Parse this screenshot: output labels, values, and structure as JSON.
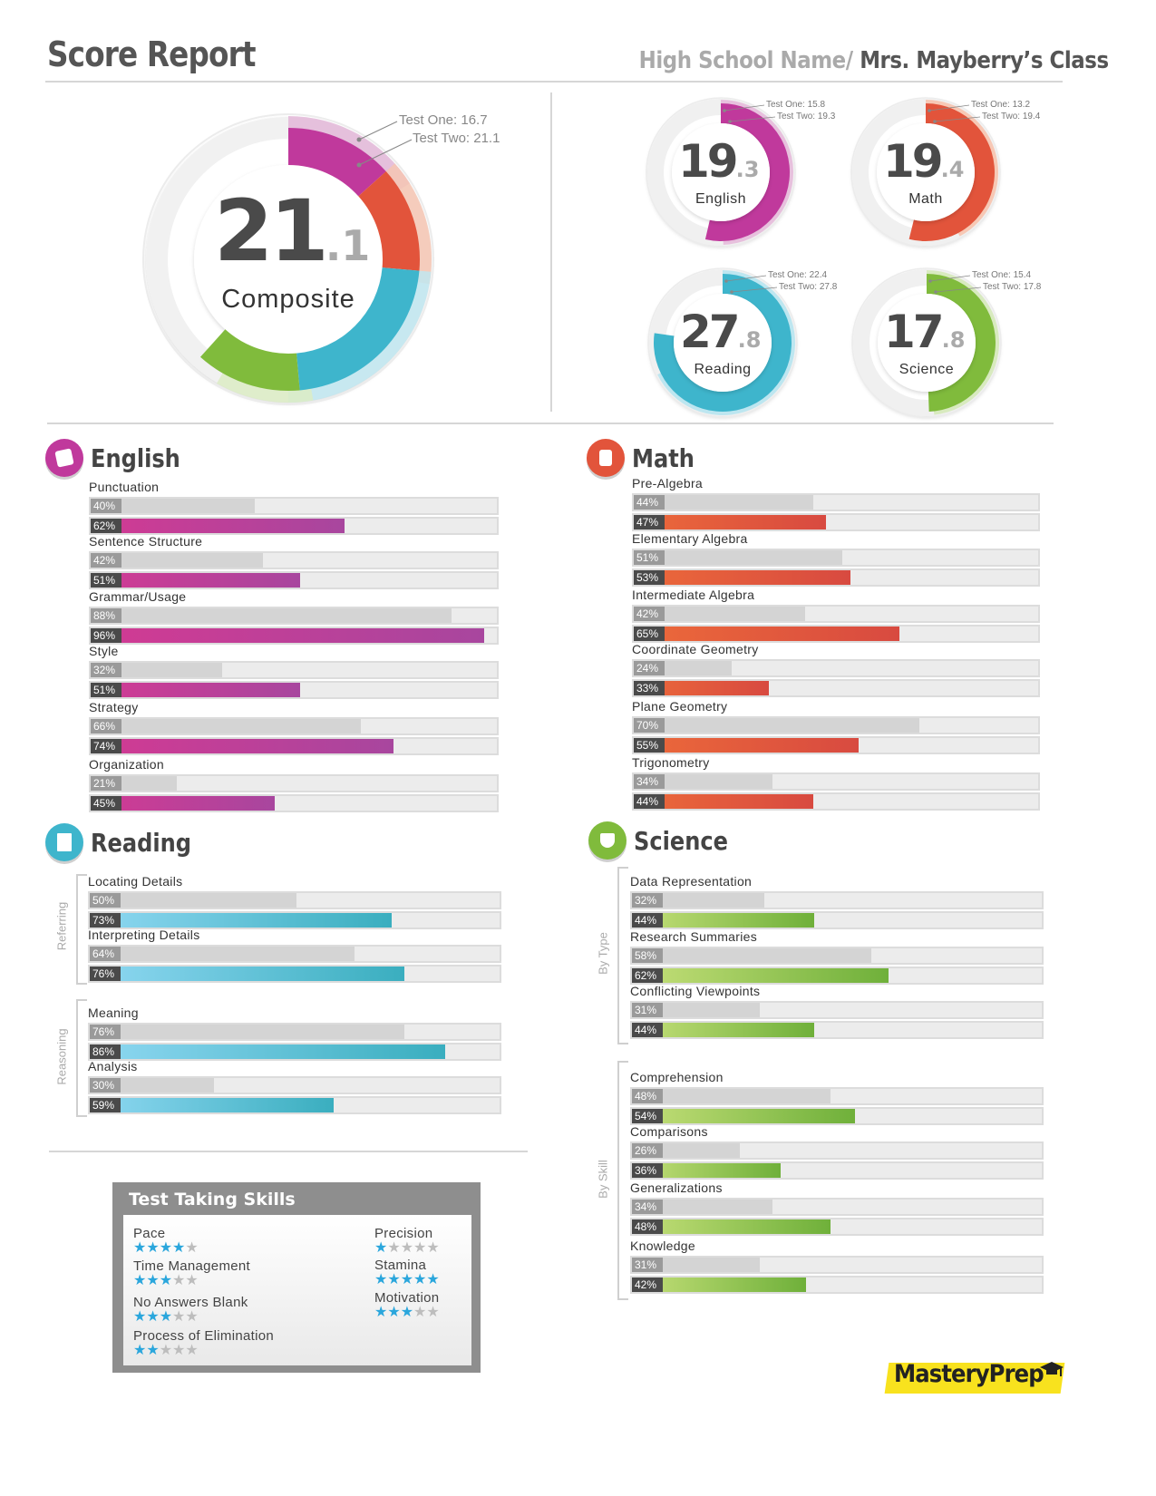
{
  "header": {
    "title": "Score Report",
    "school": "High School  Name/",
    "class_name": " Mrs. Mayberry’s Class"
  },
  "colors": {
    "english": "#c0399c",
    "math": "#e2543b",
    "reading": "#3eb5cc",
    "science": "#80bb3c"
  },
  "composite": {
    "whole": "21",
    "decimal": ".1",
    "label": "Composite",
    "test_one": "Test One: 16.7",
    "test_two": "Test Two: 21.1"
  },
  "subjects": [
    {
      "key": "english",
      "whole": "19",
      "decimal": ".3",
      "label": "English",
      "test_one": "Test One: 15.8",
      "test_two": "Test Two: 19.3",
      "test_one_score": 15.8,
      "test_two_score": 19.3
    },
    {
      "key": "math",
      "whole": "19",
      "decimal": ".4",
      "label": "Math",
      "test_one": "Test One: 13.2",
      "test_two": "Test Two: 19.4",
      "test_one_score": 13.2,
      "test_two_score": 19.4
    },
    {
      "key": "reading",
      "whole": "27",
      "decimal": ".8",
      "label": "Reading",
      "test_one": "Test One: 22.4",
      "test_two": "Test Two: 27.8",
      "test_one_score": 22.4,
      "test_two_score": 27.8
    },
    {
      "key": "science",
      "whole": "17",
      "decimal": ".8",
      "label": "Science",
      "test_one": "Test One: 15.4",
      "test_two": "Test Two: 17.8",
      "test_one_score": 15.4,
      "test_two_score": 17.8
    }
  ],
  "english": {
    "title": "English",
    "skills": [
      {
        "name": "Punctuation",
        "t1": "40%",
        "t2": "62%",
        "t1_value": 40,
        "t2_value": 62
      },
      {
        "name": "Sentence Structure",
        "t1": "42%",
        "t2": "51%",
        "t1_value": 42,
        "t2_value": 51
      },
      {
        "name": "Grammar/Usage",
        "t1": "88%",
        "t2": "96%",
        "t1_value": 88,
        "t2_value": 96
      },
      {
        "name": "Style",
        "t1": "32%",
        "t2": "51%",
        "t1_value": 32,
        "t2_value": 51
      },
      {
        "name": "Strategy",
        "t1": "66%",
        "t2": "74%",
        "t1_value": 66,
        "t2_value": 74
      },
      {
        "name": "Organization",
        "t1": "21%",
        "t2": "45%",
        "t1_value": 21,
        "t2_value": 45
      }
    ]
  },
  "math": {
    "title": "Math",
    "skills": [
      {
        "name": "Pre-Algebra",
        "t1": "44%",
        "t2": "47%",
        "t1_value": 44,
        "t2_value": 47
      },
      {
        "name": "Elementary Algebra",
        "t1": "51%",
        "t2": "53%",
        "t1_value": 51,
        "t2_value": 53
      },
      {
        "name": "Intermediate Algebra",
        "t1": "42%",
        "t2": "65%",
        "t1_value": 42,
        "t2_value": 65
      },
      {
        "name": "Coordinate Geometry",
        "t1": "24%",
        "t2": "33%",
        "t1_value": 24,
        "t2_value": 33
      },
      {
        "name": "Plane Geometry",
        "t1": "70%",
        "t2": "55%",
        "t1_value": 70,
        "t2_value": 55
      },
      {
        "name": "Trigonometry",
        "t1": "34%",
        "t2": "44%",
        "t1_value": 34,
        "t2_value": 44
      }
    ]
  },
  "reading": {
    "title": "Reading",
    "groups": [
      {
        "label": "Referring",
        "skills": [
          {
            "name": "Locating Details",
            "t1": "50%",
            "t2": "73%",
            "t1_value": 50,
            "t2_value": 73
          },
          {
            "name": "Interpreting Details",
            "t1": "64%",
            "t2": "76%",
            "t1_value": 64,
            "t2_value": 76
          }
        ]
      },
      {
        "label": "Reasoning",
        "skills": [
          {
            "name": "Meaning",
            "t1": "76%",
            "t2": "86%",
            "t1_value": 76,
            "t2_value": 86
          },
          {
            "name": "Analysis",
            "t1": "30%",
            "t2": "59%",
            "t1_value": 30,
            "t2_value": 59
          }
        ]
      }
    ]
  },
  "science": {
    "title": "Science",
    "groups": [
      {
        "label": "By Type",
        "skills": [
          {
            "name": "Data Representation",
            "t1": "32%",
            "t2": "44%",
            "t1_value": 32,
            "t2_value": 44
          },
          {
            "name": "Research Summaries",
            "t1": "58%",
            "t2": "62%",
            "t1_value": 58,
            "t2_value": 62
          },
          {
            "name": "Conflicting Viewpoints",
            "t1": "31%",
            "t2": "44%",
            "t1_value": 31,
            "t2_value": 44
          }
        ]
      },
      {
        "label": "By Skill",
        "skills": [
          {
            "name": "Comprehension",
            "t1": "48%",
            "t2": "54%",
            "t1_value": 48,
            "t2_value": 54
          },
          {
            "name": "Comparisons",
            "t1": "26%",
            "t2": "36%",
            "t1_value": 26,
            "t2_value": 36
          },
          {
            "name": "Generalizations",
            "t1": "34%",
            "t2": "48%",
            "t1_value": 34,
            "t2_value": 48
          },
          {
            "name": "Knowledge",
            "t1": "31%",
            "t2": "42%",
            "t1_value": 31,
            "t2_value": 42
          }
        ]
      }
    ]
  },
  "test_taking_skills": {
    "title": "Test Taking Skills",
    "max_stars": 5,
    "items": [
      {
        "name": "Pace",
        "stars": 4
      },
      {
        "name": "Time Management",
        "stars": 3
      },
      {
        "name": "No Answers Blank",
        "stars": 3
      },
      {
        "name": "Process of Elimination",
        "stars": 2
      },
      {
        "name": "Precision",
        "stars": 1
      },
      {
        "name": "Stamina",
        "stars": 5
      },
      {
        "name": "Motivation",
        "stars": 3
      }
    ]
  },
  "logo": {
    "text": "MasteryPrep",
    "icon": "graduation-cap-icon"
  }
}
